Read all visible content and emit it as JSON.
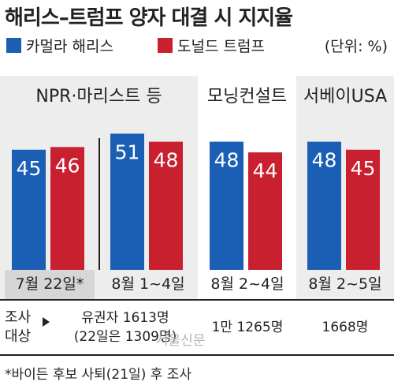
{
  "title": "해리스–트럼프 양자 대결 시 지지율",
  "legend": [
    {
      "label": "카멀라 해리스",
      "color": "#1a5fb4"
    },
    {
      "label": "도널드 트럼프",
      "color": "#c8202f"
    }
  ],
  "unit": "(단위: %)",
  "groups": [
    {
      "label": "NPR·마리스트 등"
    },
    {
      "label": "모닝컨설트"
    },
    {
      "label": "서베이USA"
    }
  ],
  "chart_data": {
    "type": "bar",
    "categories": [
      "7월 22일*",
      "8월 1~4일",
      "8월 2~4일",
      "8월 2~5일"
    ],
    "series": [
      {
        "name": "카멀라 해리스",
        "values": [
          45,
          51,
          48,
          48
        ],
        "color": "#1a5fb4"
      },
      {
        "name": "도널드 트럼프",
        "values": [
          46,
          48,
          44,
          45
        ],
        "color": "#c8202f"
      }
    ],
    "ylim": [
      0,
      60
    ]
  },
  "sample_label_1": "조사",
  "sample_label_2": "대상",
  "samples": [
    {
      "line1": "유권자 1613명",
      "line2": "(22일은 1309명)"
    },
    {
      "line1": "1만 1265명",
      "line2": ""
    },
    {
      "line1": "1668명",
      "line2": ""
    }
  ],
  "note": "*바이든 후보 사퇴(21일) 후 조사",
  "watermark": "서울신문"
}
